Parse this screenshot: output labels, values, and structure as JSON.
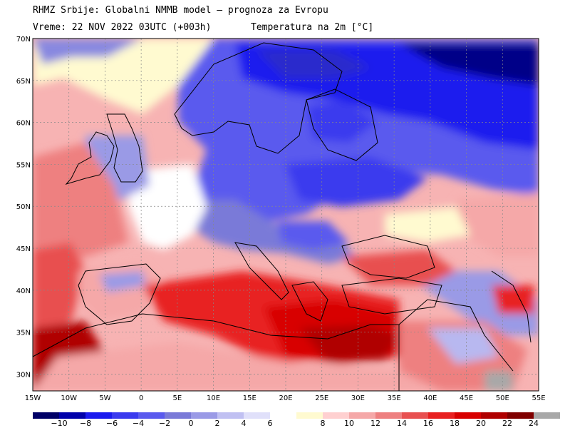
{
  "header": {
    "line1": "RHMZ Srbije: Globalni NMMB model — prognoza za Evropu",
    "line2_time": "Vreme: 22 NOV 2022 03UTC (+003h)",
    "line2_field": "Temperatura na 2m [°C]"
  },
  "map": {
    "lon_range": [
      -15,
      55
    ],
    "lat_range": [
      28,
      70
    ],
    "lon_ticks": [
      {
        "value": -15,
        "label": "15W"
      },
      {
        "value": -10,
        "label": "10W"
      },
      {
        "value": -5,
        "label": "5W"
      },
      {
        "value": 0,
        "label": "0"
      },
      {
        "value": 5,
        "label": "5E"
      },
      {
        "value": 10,
        "label": "10E"
      },
      {
        "value": 15,
        "label": "15E"
      },
      {
        "value": 20,
        "label": "20E"
      },
      {
        "value": 25,
        "label": "25E"
      },
      {
        "value": 30,
        "label": "30E"
      },
      {
        "value": 35,
        "label": "35E"
      },
      {
        "value": 40,
        "label": "40E"
      },
      {
        "value": 45,
        "label": "45E"
      },
      {
        "value": 50,
        "label": "50E"
      },
      {
        "value": 55,
        "label": "55E"
      }
    ],
    "lat_ticks": [
      {
        "value": 70,
        "label": "70N"
      },
      {
        "value": 65,
        "label": "65N"
      },
      {
        "value": 60,
        "label": "60N"
      },
      {
        "value": 55,
        "label": "55N"
      },
      {
        "value": 50,
        "label": "50N"
      },
      {
        "value": 45,
        "label": "45N"
      },
      {
        "value": 40,
        "label": "40N"
      },
      {
        "value": 35,
        "label": "35N"
      },
      {
        "value": 30,
        "label": "30N"
      }
    ]
  },
  "colorbar": {
    "colors": [
      "#000066",
      "#0000aa",
      "#1a1aee",
      "#3a3aee",
      "#5a5aee",
      "#7a7ad8",
      "#9a9ae6",
      "#c0c0f2",
      "#e0e0fa",
      "#ffffff",
      "#fffad0",
      "#ffd0d0",
      "#f5a8a8",
      "#ee8080",
      "#e85050",
      "#e82020",
      "#d80000",
      "#b00000",
      "#800000",
      "#a8a8a8"
    ],
    "labels": [
      "−10",
      "−8",
      "−6",
      "−4",
      "−2",
      "0",
      "2",
      "4",
      "6",
      "8",
      "10",
      "12",
      "14",
      "16",
      "18",
      "20",
      "22",
      "24"
    ]
  }
}
